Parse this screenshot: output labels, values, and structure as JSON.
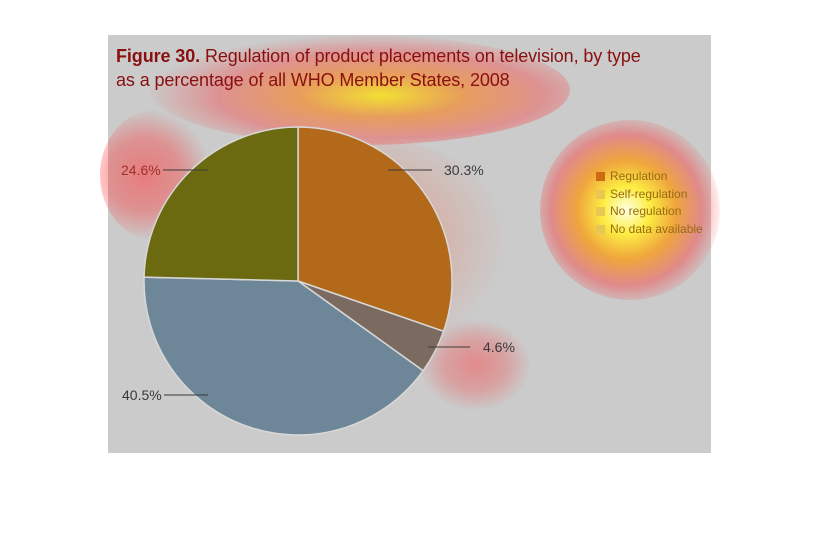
{
  "figure": {
    "label": "Figure 30.",
    "title_line1": "Regulation of product placements on television, by type",
    "title_line2": "as a percentage of all WHO Member States, 2008"
  },
  "chart_data": {
    "type": "pie",
    "slices": [
      {
        "label": "Regulation",
        "value": 30.3,
        "display": "30.3%",
        "color": "#b26a1a"
      },
      {
        "label": "Self-regulation",
        "value": 4.6,
        "display": "4.6%",
        "color": "#7a6a60"
      },
      {
        "label": "No regulation",
        "value": 40.5,
        "display": "40.5%",
        "color": "#6e8798"
      },
      {
        "label": "No data available",
        "value": 24.6,
        "display": "24.6%",
        "color": "#6b6a10"
      }
    ],
    "legend": [
      "Regulation",
      "Self-regulation",
      "No regulation",
      "No data available"
    ],
    "legend_position": "right"
  },
  "colors": {
    "panel": "#cbcbcb",
    "title": "#8a1010",
    "labels": "#3a3a3a",
    "heat": "#ff0000"
  }
}
